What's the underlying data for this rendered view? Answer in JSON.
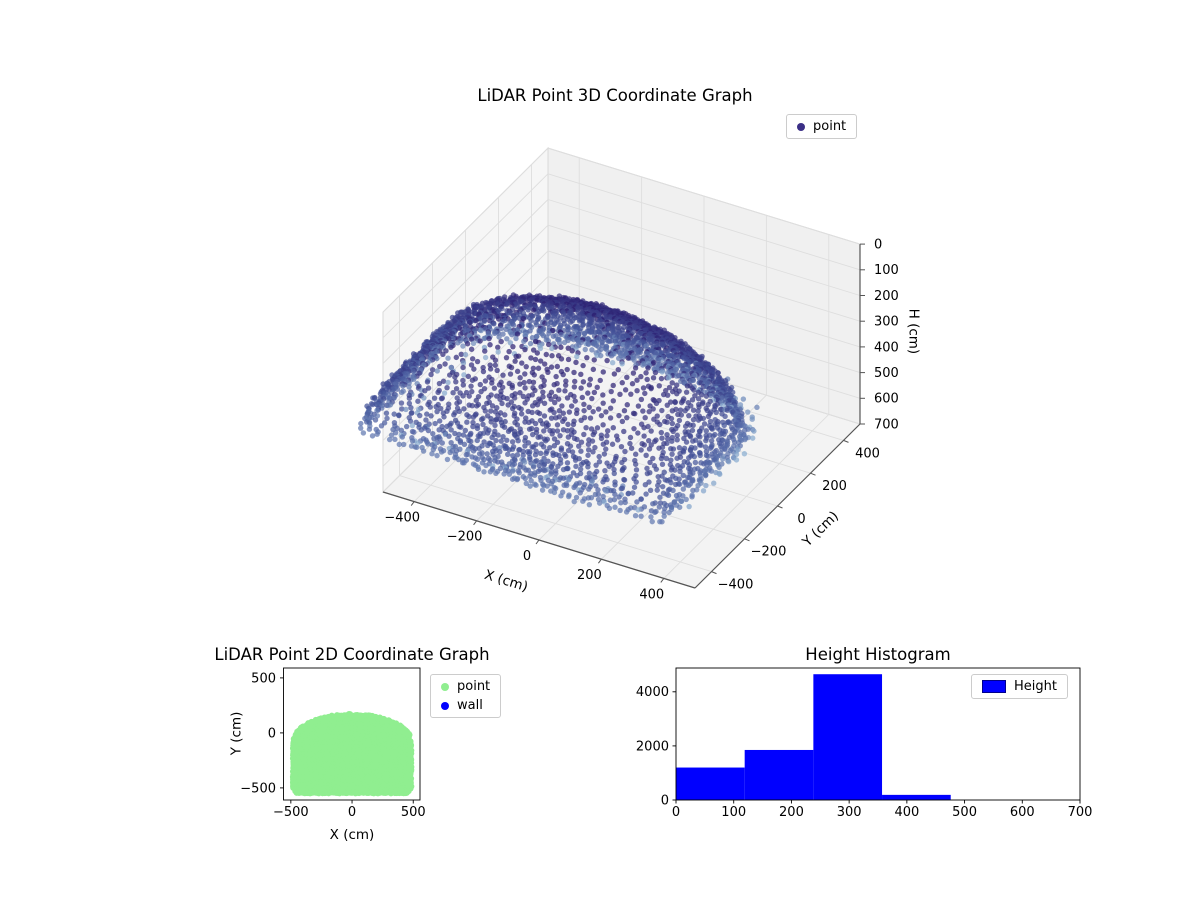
{
  "figure": {
    "background": "#ffffff"
  },
  "chart_data": [
    {
      "id": "lidar-3d",
      "type": "scatter3d",
      "title": "LiDAR Point 3D Coordinate Graph",
      "xlabel": "X (cm)",
      "ylabel": "Y (cm)",
      "zlabel": "H (cm)",
      "xlim": [
        -500,
        500
      ],
      "ylim": [
        -500,
        500
      ],
      "hlim": [
        0,
        700
      ],
      "h_axis_inverted": true,
      "xticks": [
        -400,
        -200,
        0,
        200,
        400
      ],
      "yticks": [
        -400,
        -200,
        0,
        200,
        400
      ],
      "hticks": [
        0,
        100,
        200,
        300,
        400,
        500,
        600,
        700
      ],
      "view": {
        "elev": 30,
        "azim": -60
      },
      "legend": [
        {
          "label": "point",
          "color": "#3b2f86"
        }
      ],
      "legend_loc": "upper right (outside axes)",
      "colormap": {
        "stops": [
          "#2a1a6e",
          "#44549a",
          "#8fb3d4"
        ],
        "value_domain": [
          0,
          475
        ],
        "alpha": 0.72
      },
      "points_summary": "Dome-shaped LiDAR point cloud over footprint x in [-485,485], y in [-550,172]; ceiling apex near H=0 (dark points at top since H axis is inverted), dome rim near H=350, sparse wall rings H=360..475 (light blue); concentric scan rings of ~2500-3400 points",
      "generation": {
        "seed": 7,
        "rim_h": 355,
        "ring_h_step": 12,
        "ring_point_spacing_cm": 21,
        "wall_rows": 7,
        "wall_h_start": 362,
        "wall_h_step": 16,
        "wall_keep_prob": 0.3,
        "jitter_cm": 14
      }
    },
    {
      "id": "lidar-2d",
      "type": "scatter",
      "title": "LiDAR Point 2D Coordinate Graph",
      "xlabel": "X (cm)",
      "ylabel": "Y (cm)",
      "xlim": [
        -560,
        555
      ],
      "ylim": [
        -610,
        590
      ],
      "xticks": [
        -500,
        0,
        500
      ],
      "yticks": [
        500,
        0,
        -500
      ],
      "legend": [
        {
          "label": "point",
          "color": "#90ee90"
        },
        {
          "label": "wall",
          "color": "#0000ff"
        }
      ],
      "legend_loc": "outside right of axes",
      "point_color": "#90ee90",
      "region": {
        "shape": "dome footprint: elliptical cap (half-width 485, top y 172, base y -80) over rectangle |x|<=485 down to y=-550 with slightly rounded bottom corners",
        "half_width": 485,
        "cap_top_y": 172,
        "cap_base_y": -80,
        "bottom_y": -550
      },
      "generation": {
        "seed": 11,
        "grid_spacing_cm": 15,
        "jitter_cm": 9,
        "marker_radius_px": 3
      }
    },
    {
      "id": "height-histogram",
      "type": "bar",
      "title": "Height Histogram",
      "xlabel": "",
      "ylabel": "",
      "bin_edges": [
        0,
        119,
        238,
        357,
        476
      ],
      "counts": [
        1200,
        1850,
        4650,
        190
      ],
      "xlim": [
        0,
        700
      ],
      "ylim": [
        0,
        4880
      ],
      "xticks": [
        0,
        100,
        200,
        300,
        400,
        500,
        600,
        700
      ],
      "yticks": [
        0,
        2000,
        4000
      ],
      "bar_color": "#0000ff",
      "legend": [
        {
          "label": "Height",
          "color": "#0000ff"
        }
      ],
      "legend_loc": "upper right"
    }
  ]
}
